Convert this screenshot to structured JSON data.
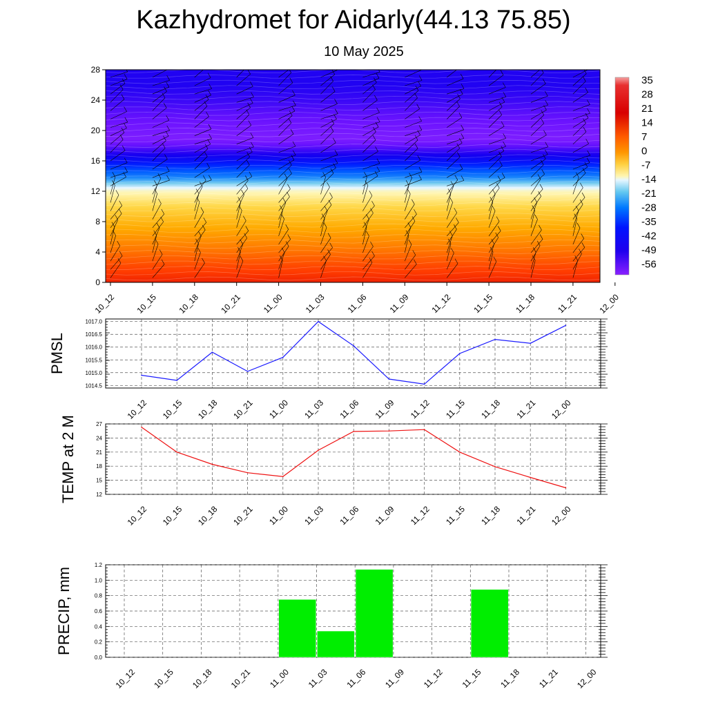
{
  "title": "Kazhydromet for Aidarly(44.13 75.85)",
  "subtitle": "10 May 2025",
  "time_labels": [
    "10_12",
    "10_15",
    "10_18",
    "10_21",
    "11_00",
    "11_03",
    "11_06",
    "11_09",
    "11_12",
    "11_15",
    "11_18",
    "11_21",
    "12_00"
  ],
  "chart_data": [
    {
      "type": "heatmap",
      "name": "temperature-cross-section",
      "x": [
        "10_12",
        "10_15",
        "10_18",
        "10_21",
        "11_00",
        "11_03",
        "11_06",
        "11_09",
        "11_12",
        "11_15",
        "11_18",
        "11_21",
        "12_00"
      ],
      "yticks": [
        0,
        4,
        8,
        12,
        16,
        20,
        24,
        28
      ],
      "ylim": [
        0,
        28
      ],
      "colorbar_ticks": [
        35,
        28,
        21,
        14,
        7,
        0,
        -7,
        -14,
        -21,
        -28,
        -35,
        -42,
        -49,
        -56
      ],
      "colorbar_range": [
        -60,
        38
      ],
      "levels": [
        0,
        2,
        4,
        6,
        8,
        10,
        12,
        13,
        14,
        16,
        18,
        19,
        20,
        22,
        24,
        26,
        28
      ],
      "profile_temp": [
        24,
        20,
        15,
        10,
        5,
        0,
        -8,
        -20,
        -30,
        -45,
        -55,
        -58,
        -57,
        -55,
        -52,
        -50,
        -50
      ],
      "wind_barbs": true
    },
    {
      "type": "line",
      "name": "pmsl",
      "ylabel": "PMSL",
      "x": [
        "10_12",
        "10_15",
        "10_18",
        "10_21",
        "11_00",
        "11_03",
        "11_06",
        "11_09",
        "11_12",
        "11_15",
        "11_18",
        "11_21",
        "12_00"
      ],
      "values": [
        1014.9,
        1014.7,
        1015.8,
        1015.05,
        1015.6,
        1017.0,
        1016.05,
        1014.75,
        1014.55,
        1015.75,
        1016.3,
        1016.15,
        1016.85
      ],
      "ylim": [
        1014.4,
        1017.1
      ],
      "yticks": [
        1014.5,
        1015.0,
        1015.5,
        1016.0,
        1016.5,
        1017.0
      ],
      "ytick_labels": [
        "1014.5",
        "1015.0",
        "1015.5",
        "1016.0",
        "1016.5",
        "1017.0"
      ],
      "color": "#1a1aff"
    },
    {
      "type": "line",
      "name": "temp-2m",
      "ylabel": "TEMP at 2 M",
      "x": [
        "10_12",
        "10_15",
        "10_18",
        "10_21",
        "11_00",
        "11_03",
        "11_06",
        "11_09",
        "11_12",
        "11_15",
        "11_18",
        "11_21",
        "12_00"
      ],
      "values": [
        26.3,
        21.0,
        18.4,
        16.6,
        15.8,
        21.4,
        25.4,
        25.5,
        25.8,
        21.0,
        17.9,
        15.6,
        13.4
      ],
      "ylim": [
        12,
        27
      ],
      "yticks": [
        12,
        15,
        18,
        21,
        24,
        27
      ],
      "ytick_labels": [
        "12",
        "15",
        "18",
        "21",
        "24",
        "27"
      ],
      "color": "#ee1111"
    },
    {
      "type": "bar",
      "name": "precip",
      "ylabel": "PRECIP, mm",
      "categories": [
        "10_12",
        "10_15",
        "10_18",
        "10_21",
        "11_00",
        "11_03",
        "11_06",
        "11_09",
        "11_12",
        "11_15",
        "11_18",
        "11_21",
        "12_00"
      ],
      "values": [
        0,
        0,
        0,
        0,
        0,
        0.75,
        0.34,
        1.14,
        0,
        0,
        0.88,
        0,
        0
      ],
      "ylim": [
        0,
        1.2
      ],
      "yticks": [
        0,
        0.2,
        0.4,
        0.6,
        0.8,
        1.0,
        1.2
      ],
      "ytick_labels": [
        "0.0",
        "0.2",
        "0.4",
        "0.6",
        "0.8",
        "1.0",
        "1.2"
      ],
      "color": "#00ee00"
    }
  ]
}
